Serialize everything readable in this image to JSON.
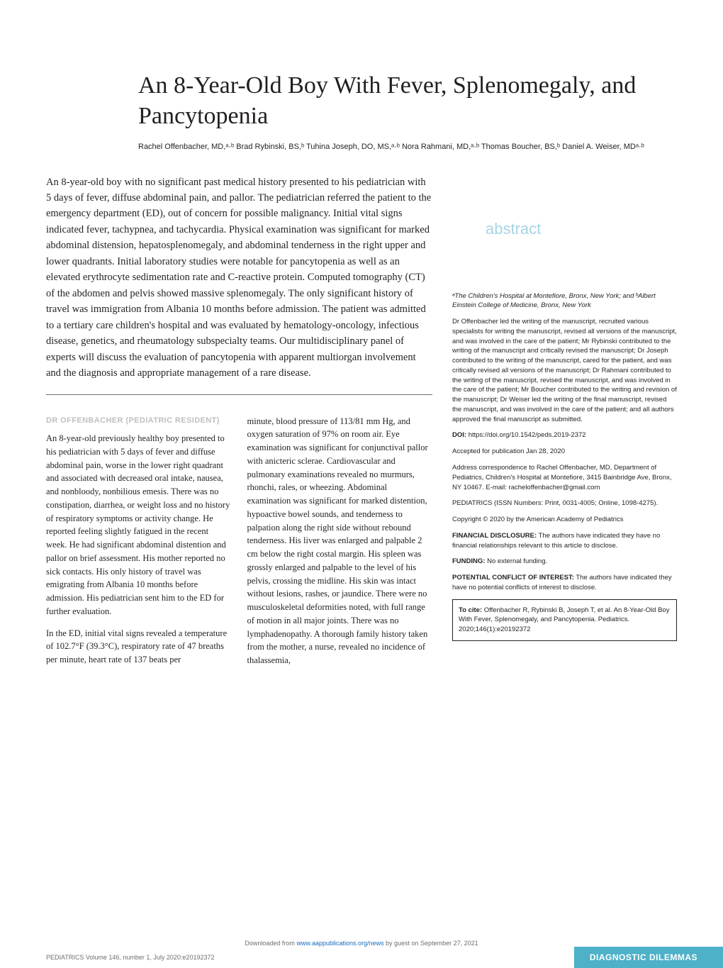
{
  "title": "An 8-Year-Old Boy With Fever, Splenomegaly, and Pancytopenia",
  "authors_html": "Rachel Offenbacher, MD,ᵃ·ᵇ Brad Rybinski, BS,ᵇ Tuhina Joseph, DO, MS,ᵃ·ᵇ Nora Rahmani, MD,ᵃ·ᵇ Thomas Boucher, BS,ᵇ Daniel A. Weiser, MDᵃ·ᵇ",
  "abstract_label": "abstract",
  "abstract": "An 8-year-old boy with no significant past medical history presented to his pediatrician with 5 days of fever, diffuse abdominal pain, and pallor. The pediatrician referred the patient to the emergency department (ED), out of concern for possible malignancy. Initial vital signs indicated fever, tachypnea, and tachycardia. Physical examination was significant for marked abdominal distension, hepatosplenomegaly, and abdominal tenderness in the right upper and lower quadrants. Initial laboratory studies were notable for pancytopenia as well as an elevated erythrocyte sedimentation rate and C-reactive protein. Computed tomography (CT) of the abdomen and pelvis showed massive splenomegaly. The only significant history of travel was immigration from Albania 10 months before admission. The patient was admitted to a tertiary care children's hospital and was evaluated by hematology-oncology, infectious disease, genetics, and rheumatology subspecialty teams. Our multidisciplinary panel of experts will discuss the evaluation of pancytopenia with apparent multiorgan involvement and the diagnosis and appropriate management of a rare disease.",
  "section_head": "DR OFFENBACHER (PEDIATRIC RESIDENT)",
  "body_p1": "An 8-year-old previously healthy boy presented to his pediatrician with 5 days of fever and diffuse abdominal pain, worse in the lower right quadrant and associated with decreased oral intake, nausea, and nonbloody, nonbilious emesis. There was no constipation, diarrhea, or weight loss and no history of respiratory symptoms or activity change. He reported feeling slightly fatigued in the recent week. He had significant abdominal distention and pallor on brief assessment. His mother reported no sick contacts. His only history of travel was emigrating from Albania 10 months before admission. His pediatrician sent him to the ED for further evaluation.",
  "body_p2": "In the ED, initial vital signs revealed a temperature of 102.7°F (39.3°C), respiratory rate of 47 breaths per minute, heart rate of 137 beats per",
  "body_p3": "minute, blood pressure of 113/81 mm Hg, and oxygen saturation of 97% on room air. Eye examination was significant for conjunctival pallor with anicteric sclerae. Cardiovascular and pulmonary examinations revealed no murmurs, rhonchi, rales, or wheezing. Abdominal examination was significant for marked distention, hypoactive bowel sounds, and tenderness to palpation along the right side without rebound tenderness. His liver was enlarged and palpable 2 cm below the right costal margin. His spleen was grossly enlarged and palpable to the level of his pelvis, crossing the midline. His skin was intact without lesions, rashes, or jaundice. There were no musculoskeletal deformities noted, with full range of motion in all major joints. There was no lymphadenopathy. A thorough family history taken from the mother, a nurse, revealed no incidence of thalassemia,",
  "sidebar": {
    "affil": "ᵃThe Children's Hospital at Montefiore, Bronx, New York; and ᵇAlbert Einstein College of Medicine, Bronx, New York",
    "contrib": "Dr Offenbacher led the writing of the manuscript, recruited various specialists for writing the manuscript, revised all versions of the manuscript, and was involved in the care of the patient; Mr Rybinski contributed to the writing of the manuscript and critically revised the manuscript; Dr Joseph contributed to the writing of the manuscript, cared for the patient, and was critically revised all versions of the manuscript; Dr Rahmani contributed to the writing of the manuscript, revised the manuscript, and was involved in the care of the patient; Mr Boucher contributed to the writing and revision of the manuscript; Dr Weiser led the writing of the final manuscript, revised the manuscript, and was involved in the care of the patient; and all authors approved the final manuscript as submitted.",
    "doi_label": "DOI:",
    "doi": "https://doi.org/10.1542/peds.2019-2372",
    "accepted": "Accepted for publication Jan 28, 2020",
    "corr": "Address correspondence to Rachel Offenbacher, MD, Department of Pediatrics, Children's Hospital at Montefiore, 3415 Bainbridge Ave, Bronx, NY 10467. E-mail: racheloffenbacher@gmail.com",
    "issn": "PEDIATRICS (ISSN Numbers: Print, 0031-4005; Online, 1098-4275).",
    "copyright": "Copyright © 2020 by the American Academy of Pediatrics",
    "fd_label": "FINANCIAL DISCLOSURE:",
    "fd": "The authors have indicated they have no financial relationships relevant to this article to disclose.",
    "fund_label": "FUNDING:",
    "fund": "No external funding.",
    "pci_label": "POTENTIAL CONFLICT OF INTEREST:",
    "pci": "The authors have indicated they have no potential conflicts of interest to disclose.",
    "cite_label": "To cite:",
    "cite": "Offenbacher R, Rybinski B, Joseph T, et al. An 8-Year-Old Boy With Fever, Splenomegaly, and Pancytopenia. Pediatrics. 2020;146(1):e20192372"
  },
  "footer": {
    "dl_pre": "Downloaded from ",
    "dl_link": "www.aappublications.org/news",
    "dl_post": " by guest on September 27, 2021",
    "left": "PEDIATRICS Volume 146, number 1, July 2020:e20192372",
    "right": "DIAGNOSTIC DILEMMAS"
  },
  "colors": {
    "title": "#231f20",
    "section_head": "#bfbfbf",
    "abstract_label": "#a7d4e3",
    "footer_bg": "#4db1c8",
    "link": "#1a6bbd"
  }
}
